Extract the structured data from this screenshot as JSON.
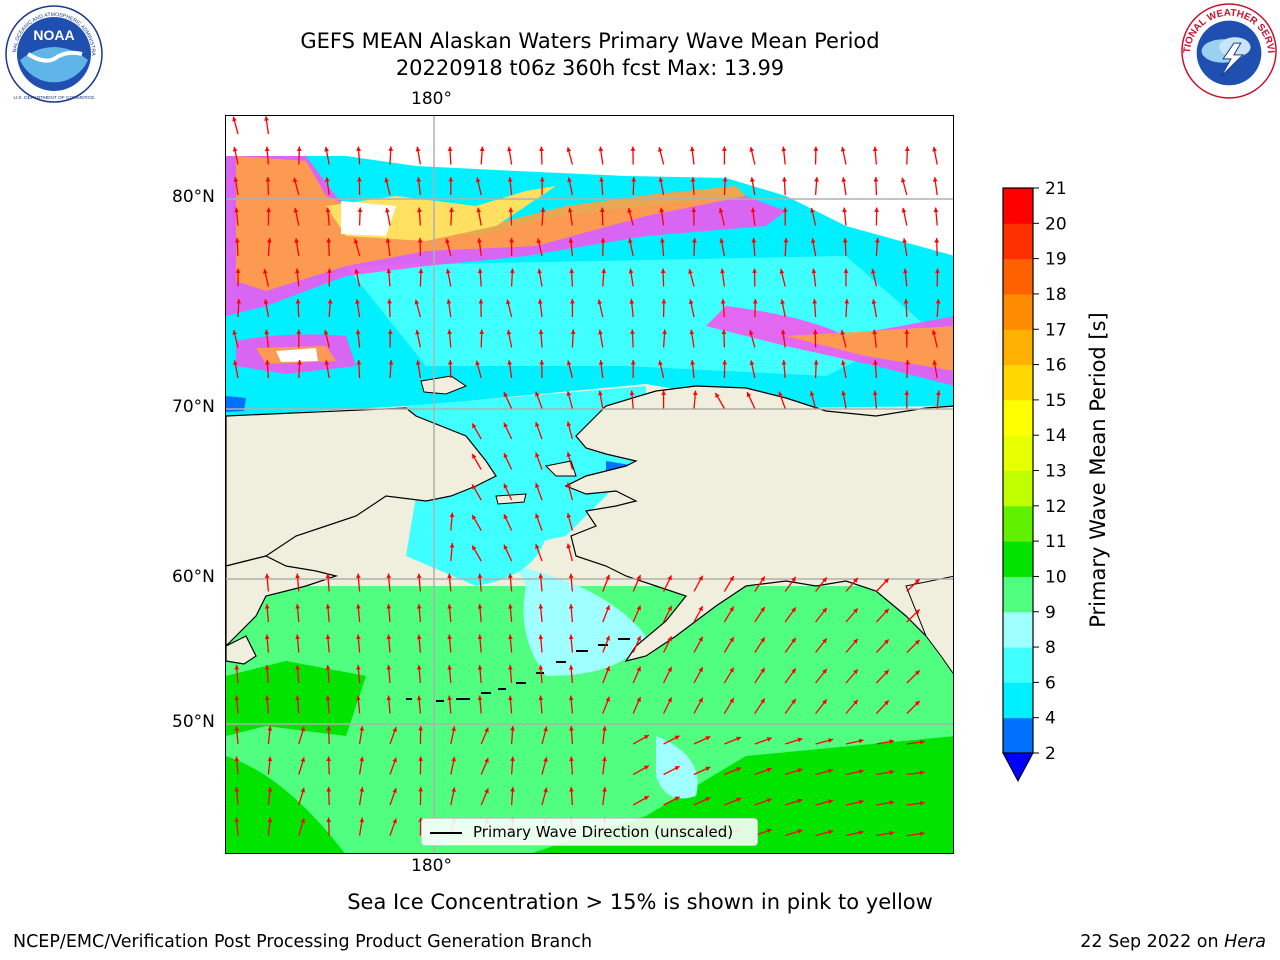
{
  "header": {
    "title_line1": "GEFS MEAN Alaskan Waters Primary Wave Mean Period",
    "title_line2": "20220918 t06z 360h fcst   Max: 13.99"
  },
  "logos": {
    "noaa": {
      "text": "NOAA",
      "ring_text": "NATIONAL OCEANIC AND ATMOSPHERIC ADMINISTRATION",
      "bottom_text": "U.S. DEPARTMENT OF COMMERCE"
    },
    "nws": {
      "ring_text": "NATIONAL WEATHER SERVICE"
    }
  },
  "map": {
    "longitude_label_top": "180°",
    "longitude_label_bottom": "180°",
    "latitude_labels": [
      "80°N",
      "70°N",
      "60°N",
      "50°N"
    ],
    "legend_label": "Primary Wave Direction (unscaled)",
    "colors": {
      "land": "#f0eedd",
      "coast": "#000000",
      "grid": "#b0b0b0",
      "arrow": "#ff0000",
      "ice_outer": "#ff4df0",
      "ice_mid": "#ffa040",
      "ice_inner": "#ffe060"
    }
  },
  "colorbar": {
    "title": "Primary Wave Mean Period [s]",
    "levels": [
      "2",
      "4",
      "6",
      "8",
      "9",
      "10",
      "11",
      "12",
      "13",
      "14",
      "15",
      "16",
      "17",
      "18",
      "19",
      "20",
      "21"
    ],
    "colors": [
      "#0070ff",
      "#00f0ff",
      "#40ffff",
      "#a0ffff",
      "#50ff80",
      "#00e400",
      "#60f000",
      "#c0ff00",
      "#e8ff00",
      "#ffff00",
      "#ffd800",
      "#ffb000",
      "#ff8c00",
      "#ff6000",
      "#ff3000",
      "#ff0000"
    ],
    "under_color": "#0000ff"
  },
  "footer": {
    "ice_note": "Sea Ice Concentration > 15% is shown in pink to yellow",
    "left": "NCEP/EMC/Verification Post Processing Product Generation Branch",
    "right_date": "22 Sep 2022 on ",
    "right_host": "Hera"
  }
}
